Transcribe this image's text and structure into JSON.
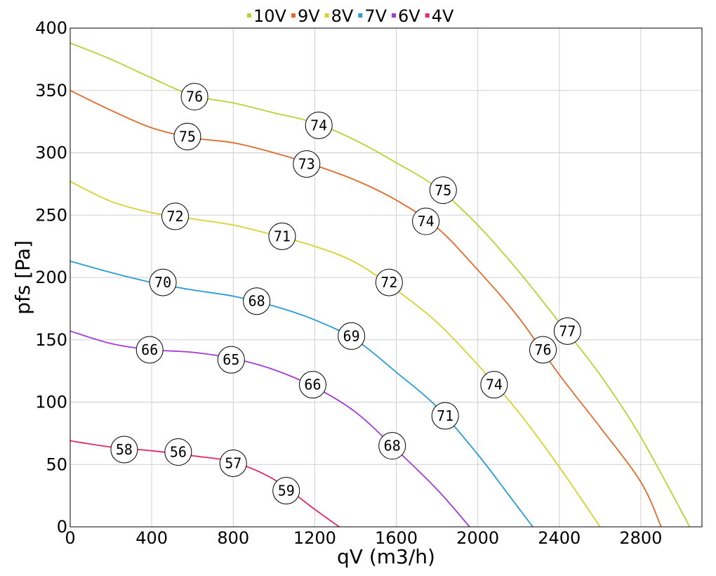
{
  "chart_data": {
    "type": "line",
    "title": "",
    "xlabel": "qV (m3/h)",
    "ylabel": "pfs [Pa]",
    "xlim": [
      0,
      3100
    ],
    "ylim": [
      0,
      400
    ],
    "x_ticks": [
      0,
      400,
      800,
      1200,
      1600,
      2000,
      2400,
      2800
    ],
    "y_ticks": [
      0,
      50,
      100,
      150,
      200,
      250,
      300,
      350,
      400
    ],
    "grid": true,
    "legend_position": "top-center",
    "series": [
      {
        "name": "10V",
        "color": "#b5d334",
        "points": [
          [
            0,
            388
          ],
          [
            200,
            375
          ],
          [
            400,
            360
          ],
          [
            600,
            346
          ],
          [
            800,
            340
          ],
          [
            1000,
            332
          ],
          [
            1200,
            324
          ],
          [
            1400,
            310
          ],
          [
            1600,
            292
          ],
          [
            1800,
            272
          ],
          [
            2000,
            242
          ],
          [
            2200,
            205
          ],
          [
            2400,
            164
          ],
          [
            2600,
            122
          ],
          [
            2800,
            72
          ],
          [
            3040,
            0
          ]
        ],
        "labels": [
          {
            "x": 610,
            "y": 345,
            "text": "76"
          },
          {
            "x": 1220,
            "y": 322,
            "text": "74"
          },
          {
            "x": 1830,
            "y": 270,
            "text": "75"
          },
          {
            "x": 2440,
            "y": 157,
            "text": "77"
          }
        ]
      },
      {
        "name": "9V",
        "color": "#e06a2c",
        "points": [
          [
            0,
            350
          ],
          [
            200,
            334
          ],
          [
            400,
            320
          ],
          [
            600,
            312
          ],
          [
            800,
            308
          ],
          [
            1000,
            300
          ],
          [
            1200,
            290
          ],
          [
            1400,
            278
          ],
          [
            1600,
            262
          ],
          [
            1800,
            240
          ],
          [
            2000,
            206
          ],
          [
            2200,
            168
          ],
          [
            2400,
            122
          ],
          [
            2600,
            80
          ],
          [
            2800,
            36
          ],
          [
            2900,
            0
          ]
        ],
        "labels": [
          {
            "x": 575,
            "y": 313,
            "text": "75"
          },
          {
            "x": 1160,
            "y": 291,
            "text": "73"
          },
          {
            "x": 1745,
            "y": 245,
            "text": "74"
          },
          {
            "x": 2320,
            "y": 142,
            "text": "76"
          }
        ]
      },
      {
        "name": "8V",
        "color": "#d8d12f",
        "points": [
          [
            0,
            277
          ],
          [
            200,
            261
          ],
          [
            400,
            252
          ],
          [
            600,
            247
          ],
          [
            800,
            242
          ],
          [
            1000,
            234
          ],
          [
            1200,
            225
          ],
          [
            1400,
            212
          ],
          [
            1600,
            190
          ],
          [
            1800,
            164
          ],
          [
            2000,
            130
          ],
          [
            2200,
            92
          ],
          [
            2400,
            48
          ],
          [
            2600,
            0
          ]
        ],
        "labels": [
          {
            "x": 515,
            "y": 249,
            "text": "72"
          },
          {
            "x": 1040,
            "y": 233,
            "text": "71"
          },
          {
            "x": 1565,
            "y": 196,
            "text": "72"
          },
          {
            "x": 2080,
            "y": 114,
            "text": "74"
          }
        ]
      },
      {
        "name": "7V",
        "color": "#2a9bd8",
        "points": [
          [
            0,
            213
          ],
          [
            200,
            204
          ],
          [
            400,
            196
          ],
          [
            600,
            190
          ],
          [
            800,
            185
          ],
          [
            1000,
            177
          ],
          [
            1200,
            166
          ],
          [
            1400,
            150
          ],
          [
            1600,
            124
          ],
          [
            1800,
            96
          ],
          [
            2000,
            58
          ],
          [
            2150,
            26
          ],
          [
            2270,
            0
          ]
        ],
        "labels": [
          {
            "x": 455,
            "y": 196,
            "text": "70"
          },
          {
            "x": 915,
            "y": 181,
            "text": "68"
          },
          {
            "x": 1380,
            "y": 153,
            "text": "69"
          },
          {
            "x": 1840,
            "y": 89,
            "text": "71"
          }
        ]
      },
      {
        "name": "6V",
        "color": "#a43ad6",
        "points": [
          [
            0,
            157
          ],
          [
            200,
            147
          ],
          [
            400,
            142
          ],
          [
            600,
            140
          ],
          [
            800,
            135
          ],
          [
            1000,
            126
          ],
          [
            1200,
            112
          ],
          [
            1400,
            92
          ],
          [
            1600,
            62
          ],
          [
            1800,
            30
          ],
          [
            1960,
            0
          ]
        ],
        "labels": [
          {
            "x": 390,
            "y": 142,
            "text": "66"
          },
          {
            "x": 790,
            "y": 134,
            "text": "65"
          },
          {
            "x": 1190,
            "y": 114,
            "text": "66"
          },
          {
            "x": 1580,
            "y": 65,
            "text": "68"
          }
        ]
      },
      {
        "name": "4V",
        "color": "#e02a6a",
        "points": [
          [
            0,
            69
          ],
          [
            200,
            64
          ],
          [
            400,
            61
          ],
          [
            600,
            57
          ],
          [
            800,
            52
          ],
          [
            1000,
            38
          ],
          [
            1200,
            14
          ],
          [
            1320,
            0
          ]
        ],
        "labels": [
          {
            "x": 265,
            "y": 62,
            "text": "58"
          },
          {
            "x": 530,
            "y": 60,
            "text": "56"
          },
          {
            "x": 800,
            "y": 51,
            "text": "57"
          },
          {
            "x": 1060,
            "y": 29,
            "text": "59"
          }
        ]
      }
    ]
  }
}
